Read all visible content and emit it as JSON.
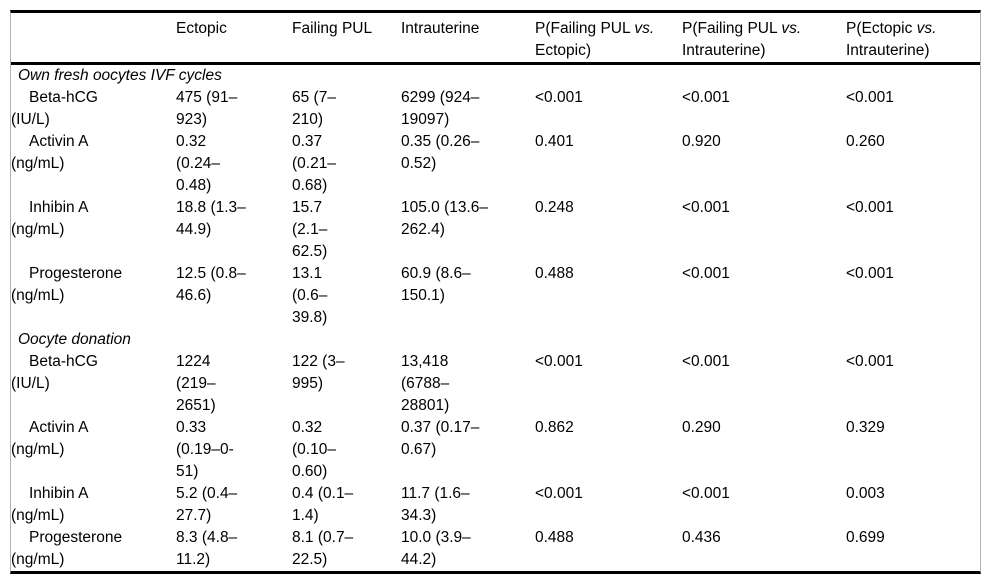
{
  "table": {
    "columns": [
      {
        "label": ""
      },
      {
        "label": "Ectopic"
      },
      {
        "label": "Failing PUL"
      },
      {
        "label": "Intrauterine"
      },
      {
        "label": "P(Failing PUL ",
        "italic": "vs.",
        "line2": "Ectopic)"
      },
      {
        "label": "P(Failing PUL ",
        "italic": "vs.",
        "line2": "Intrauterine)"
      },
      {
        "label": "P(Ectopic ",
        "italic": "vs.",
        "line2": "Intrauterine)"
      }
    ],
    "sections": [
      {
        "title": "Own fresh oocytes IVF cycles",
        "rows": [
          {
            "cells": [
              "Beta-hCG\n(IU/L)",
              "475 (91–\n923)",
              "65 (7–\n210)",
              "6299 (924–\n19097)",
              "<0.001",
              "<0.001",
              "<0.001"
            ]
          },
          {
            "cells": [
              "Activin A\n(ng/mL)",
              "0.32\n(0.24–\n0.48)",
              "0.37\n(0.21–\n0.68)",
              "0.35 (0.26–\n0.52)",
              "0.401",
              "0.920",
              "0.260"
            ]
          },
          {
            "cells": [
              "Inhibin A\n(ng/mL)",
              "18.8 (1.3–\n44.9)",
              "15.7\n(2.1–\n62.5)",
              "105.0 (13.6–\n262.4)",
              "0.248",
              "<0.001",
              "<0.001"
            ]
          },
          {
            "cells": [
              "Progesterone\n(ng/mL)",
              "12.5 (0.8–\n46.6)",
              "13.1\n(0.6–\n39.8)",
              "60.9 (8.6–\n150.1)",
              "0.488",
              "<0.001",
              "<0.001"
            ]
          }
        ]
      },
      {
        "title": "Oocyte donation",
        "rows": [
          {
            "cells": [
              "Beta-hCG\n(IU/L)",
              "1224\n(219–\n2651)",
              "122 (3–\n995)",
              "13,418\n(6788–\n28801)",
              "<0.001",
              "<0.001",
              "<0.001"
            ]
          },
          {
            "cells": [
              "Activin A\n(ng/mL)",
              "0.33\n(0.19–0-\n51)",
              "0.32\n(0.10–\n0.60)",
              "0.37 (0.17–\n0.67)",
              "0.862",
              "0.290",
              "0.329"
            ]
          },
          {
            "cells": [
              "Inhibin A\n(ng/mL)",
              "5.2 (0.4–\n27.7)",
              "0.4 (0.1–\n1.4)",
              "11.7 (1.6–\n34.3)",
              "<0.001",
              "<0.001",
              "0.003"
            ]
          },
          {
            "cells": [
              "Progesterone\n(ng/mL)",
              "8.3 (4.8–\n11.2)",
              "8.1 (0.7–\n22.5)",
              "10.0 (3.9–\n44.2)",
              "0.488",
              "0.436",
              "0.699"
            ]
          }
        ]
      }
    ]
  }
}
